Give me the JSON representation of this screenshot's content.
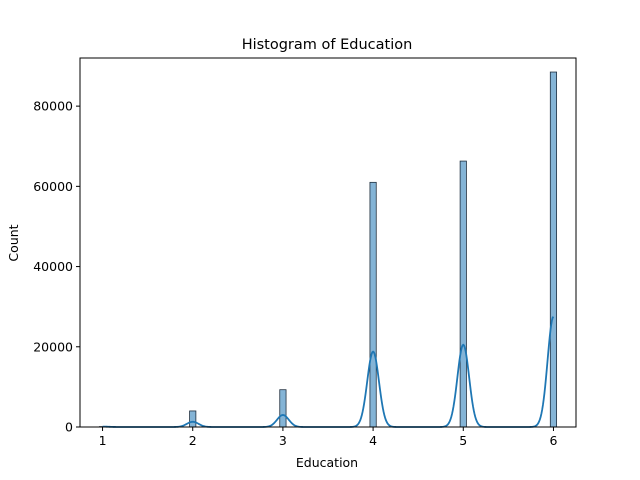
{
  "chart_data": {
    "type": "bar",
    "title": "Histogram of Education",
    "xlabel": "Education",
    "ylabel": "Count",
    "xlim": [
      0.75,
      6.25
    ],
    "ylim": [
      0,
      92000
    ],
    "x_ticks": [
      1,
      2,
      3,
      4,
      5,
      6
    ],
    "y_ticks": [
      0,
      20000,
      40000,
      60000,
      80000
    ],
    "bar_width": 0.07,
    "bars": [
      {
        "x": 1,
        "value": 100
      },
      {
        "x": 2,
        "value": 4000
      },
      {
        "x": 3,
        "value": 9300
      },
      {
        "x": 4,
        "value": 61000
      },
      {
        "x": 5,
        "value": 66300
      },
      {
        "x": 6,
        "value": 88500
      }
    ],
    "kde": {
      "bandwidth": 0.065,
      "peaks": [
        {
          "x": 1,
          "height": 100
        },
        {
          "x": 2,
          "height": 1300
        },
        {
          "x": 3,
          "height": 3000
        },
        {
          "x": 4,
          "height": 18800
        },
        {
          "x": 5,
          "height": 20500
        },
        {
          "x": 6,
          "height": 27500
        }
      ]
    },
    "grid": false,
    "colors": {
      "bar_fill": "#1f77b4",
      "kde_line": "#1f77b4"
    }
  }
}
